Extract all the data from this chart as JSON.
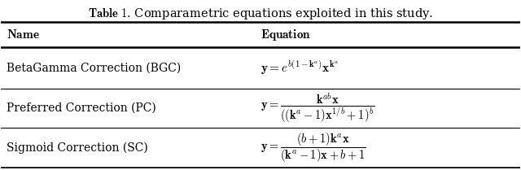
{
  "title": "\\textbf{Table 1}. Comparametric equations exploited in this study.",
  "col_headers": [
    "\\textbf{Name}",
    "\\textbf{Equation}"
  ],
  "rows": [
    [
      "BetaGamma Correction (BGC)",
      "$\\mathbf{y} = e^{b(1-\\mathbf{k}^a)}\\mathbf{x}^{\\mathbf{k}^a}$"
    ],
    [
      "Preferred Correction (PC)",
      "$\\mathbf{y} = \\dfrac{\\mathbf{k}^{ab}\\mathbf{x}}{((\\mathbf{k}^{a}-1)\\mathbf{x}^{1/b}+1)^{b}}$"
    ],
    [
      "Sigmoid Correction (SC)",
      "$\\mathbf{y} = \\dfrac{(b+1)\\mathbf{k}^{a}\\mathbf{x}}{(\\mathbf{k}^{a}-1)\\mathbf{x}+b+1}$"
    ]
  ],
  "bg_color": "#ffffff",
  "text_color": "#000000",
  "figsize": [
    6.4,
    2.09
  ],
  "dpi": 100
}
